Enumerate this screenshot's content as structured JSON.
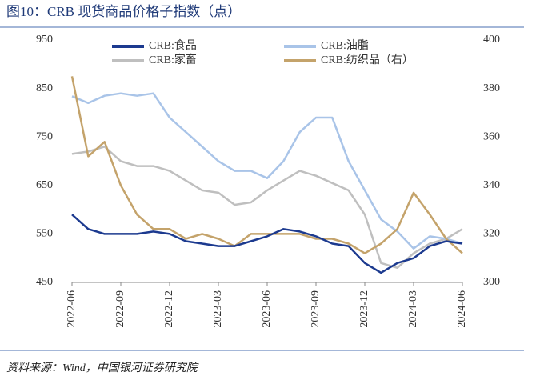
{
  "chart_data": {
    "type": "line",
    "title": "图10：CRB 现货商品价格子指数（点）",
    "source": "资料来源：Wind，中国银河证券研究院",
    "x": [
      "2022-06",
      "2022-07",
      "2022-08",
      "2022-09",
      "2022-10",
      "2022-11",
      "2022-12",
      "2023-01",
      "2023-02",
      "2023-03",
      "2023-04",
      "2023-05",
      "2023-06",
      "2023-07",
      "2023-08",
      "2023-09",
      "2023-10",
      "2023-11",
      "2023-12",
      "2024-01",
      "2024-02",
      "2024-03",
      "2024-04",
      "2024-05",
      "2024-06"
    ],
    "ylim": [
      450,
      950
    ],
    "yticks": [
      450,
      550,
      650,
      750,
      850,
      950
    ],
    "y2lim": [
      300,
      400
    ],
    "y2ticks": [
      300,
      320,
      340,
      360,
      380,
      400
    ],
    "series": [
      {
        "name": "CRB:食品",
        "color": "#1c3a8f",
        "values": [
          590,
          560,
          550,
          550,
          550,
          555,
          550,
          535,
          530,
          525,
          525,
          535,
          545,
          560,
          555,
          545,
          530,
          525,
          490,
          470,
          490,
          500,
          525,
          535,
          530
        ]
      },
      {
        "name": "CRB:油脂",
        "color": "#a9c4e8",
        "values": [
          834,
          820,
          835,
          840,
          835,
          840,
          790,
          760,
          730,
          700,
          680,
          680,
          665,
          700,
          760,
          790,
          790,
          700,
          640,
          580,
          555,
          520,
          545,
          540,
          530
        ]
      },
      {
        "name": "CRB:家畜",
        "color": "#bfbfbf",
        "values": [
          715,
          720,
          730,
          700,
          690,
          690,
          680,
          660,
          640,
          635,
          610,
          615,
          640,
          660,
          680,
          670,
          655,
          640,
          590,
          490,
          480,
          510,
          530,
          540,
          560
        ]
      },
      {
        "name": "CRB:纺织品（右）",
        "color": "#c4a36b",
        "axis": "y2",
        "values": [
          385,
          352,
          358,
          340,
          328,
          322,
          322,
          318,
          320,
          318,
          315,
          320,
          320,
          320,
          320,
          318,
          318,
          316,
          312,
          316,
          322,
          337,
          328,
          318,
          312
        ]
      }
    ]
  }
}
